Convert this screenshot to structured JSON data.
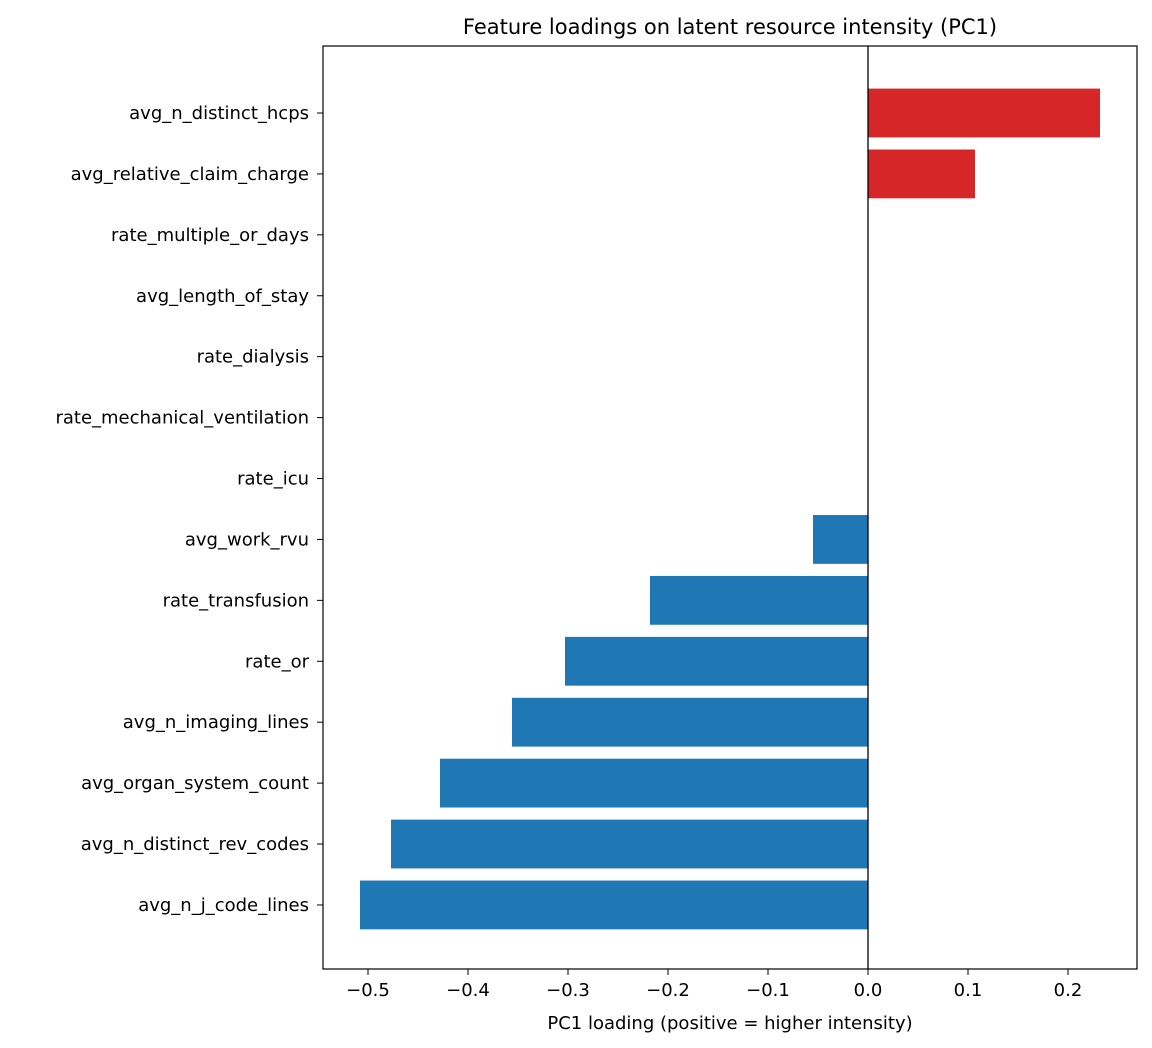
{
  "chart_data": {
    "type": "bar",
    "orientation": "horizontal",
    "title": "Feature loadings on latent resource intensity (PC1)",
    "xlabel": "PC1 loading (positive = higher intensity)",
    "ylabel": "",
    "xlim": [
      -0.545,
      0.269
    ],
    "xticks": [
      -0.5,
      -0.4,
      -0.3,
      -0.2,
      -0.1,
      0.0,
      0.1,
      0.2
    ],
    "xtick_labels": [
      "−0.5",
      "−0.4",
      "−0.3",
      "−0.2",
      "−0.1",
      "0.0",
      "0.1",
      "0.2"
    ],
    "grid": false,
    "zero_line": true,
    "colors": {
      "positive": "#d62728",
      "negative": "#1f77b4"
    },
    "categories": [
      "avg_n_distinct_hcps",
      "avg_relative_claim_charge",
      "rate_multiple_or_days",
      "avg_length_of_stay",
      "rate_dialysis",
      "rate_mechanical_ventilation",
      "rate_icu",
      "avg_work_rvu",
      "rate_transfusion",
      "rate_or",
      "avg_n_imaging_lines",
      "avg_organ_system_count",
      "avg_n_distinct_rev_codes",
      "avg_n_j_code_lines"
    ],
    "values": [
      0.232,
      0.107,
      0.0,
      0.0,
      0.0,
      0.0,
      0.0,
      -0.055,
      -0.218,
      -0.303,
      -0.356,
      -0.428,
      -0.477,
      -0.508
    ]
  }
}
